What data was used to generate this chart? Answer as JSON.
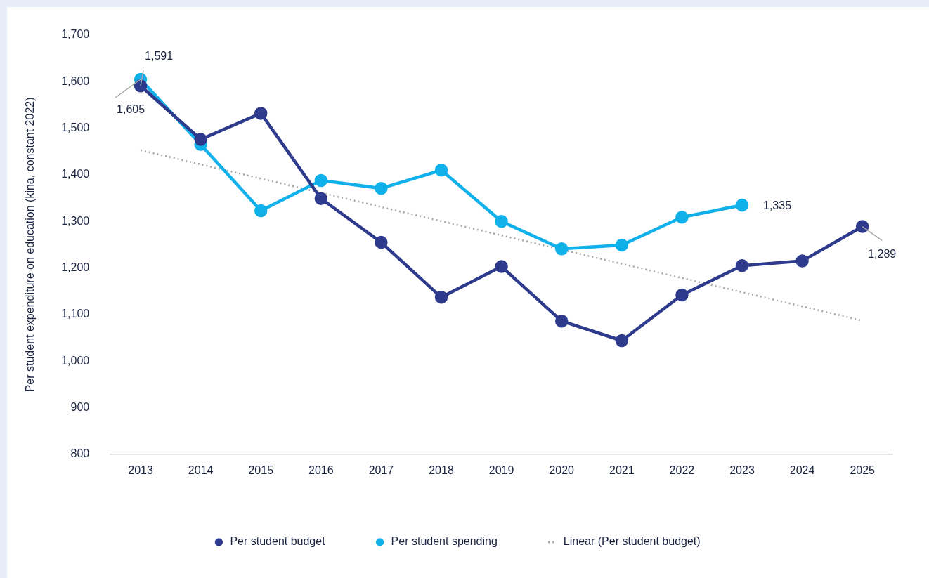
{
  "chart_data": {
    "type": "line",
    "ylabel": "Per student expenditure on education (kina, constant 2022)",
    "categories": [
      "2013",
      "2014",
      "2015",
      "2016",
      "2017",
      "2018",
      "2019",
      "2020",
      "2021",
      "2022",
      "2023",
      "2024",
      "2025"
    ],
    "ylim": [
      800,
      1700
    ],
    "yticks": [
      {
        "value": 800,
        "label": "800"
      },
      {
        "value": 900,
        "label": "900"
      },
      {
        "value": 1000,
        "label": "1,000"
      },
      {
        "value": 1100,
        "label": "1,100"
      },
      {
        "value": 1200,
        "label": "1,200"
      },
      {
        "value": 1300,
        "label": "1,300"
      },
      {
        "value": 1400,
        "label": "1,400"
      },
      {
        "value": 1500,
        "label": "1,500"
      },
      {
        "value": 1600,
        "label": "1,600"
      },
      {
        "value": 1700,
        "label": "1,700"
      }
    ],
    "series": [
      {
        "name": "Per student budget",
        "color": "#2e3a8c",
        "marker": "circle",
        "values": [
          1591,
          1476,
          1532,
          1349,
          1255,
          1137,
          1203,
          1086,
          1044,
          1142,
          1205,
          1215,
          1289
        ],
        "value_labels": [
          "1,591",
          null,
          null,
          null,
          null,
          null,
          null,
          null,
          null,
          null,
          null,
          null,
          "1,289"
        ]
      },
      {
        "name": "Per student spending",
        "color": "#10b0ea",
        "marker": "circle",
        "values": [
          1605,
          1465,
          1323,
          1388,
          1371,
          1410,
          1300,
          1241,
          1249,
          1309,
          1335,
          null,
          null
        ],
        "value_labels": [
          "1,605",
          null,
          null,
          null,
          null,
          null,
          null,
          null,
          null,
          null,
          "1,335",
          null,
          null
        ]
      },
      {
        "name": "Linear (Per student budget)",
        "color": "#a6a6a6",
        "marker": "none",
        "line_style": "dotted",
        "values": [
          1453,
          null,
          null,
          null,
          null,
          null,
          null,
          null,
          null,
          null,
          null,
          null,
          1087
        ]
      }
    ],
    "grid": false,
    "legend": "bottom"
  }
}
